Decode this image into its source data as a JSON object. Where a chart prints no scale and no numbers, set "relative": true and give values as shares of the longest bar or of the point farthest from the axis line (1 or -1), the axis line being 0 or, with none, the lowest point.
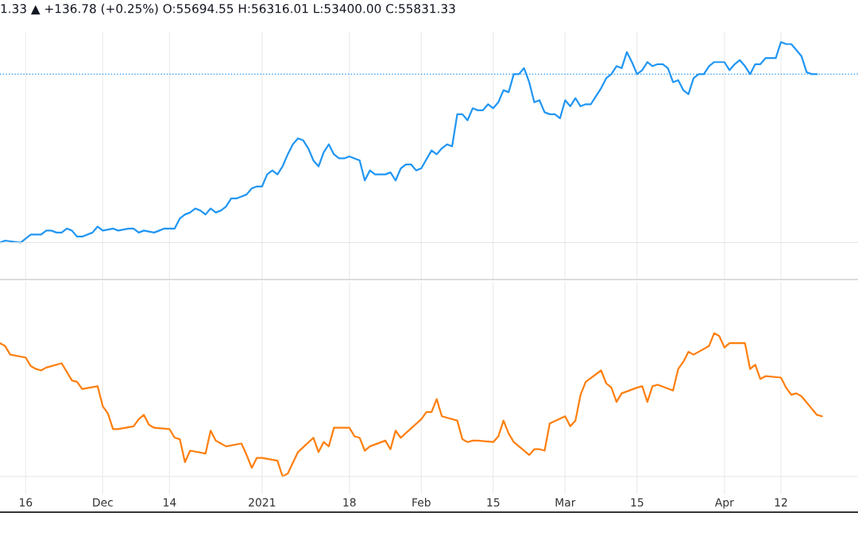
{
  "chart_data": [
    {
      "type": "line",
      "title": "1.33 ▲ +136.78 (+0.25%) O:55694.55 H:56316.01 L:53400.00 C:55831.33",
      "relative": true,
      "grid": "x",
      "tick_labels": false,
      "legend": false,
      "marker": "none",
      "line_style": "solid",
      "xlim": [
        "2020-11-11",
        "2021-04-27"
      ],
      "xticks": [
        {
          "value": "2020-11-16",
          "label": null
        },
        {
          "value": "2020-12-01",
          "label": null
        },
        {
          "value": "2020-12-14",
          "label": null
        },
        {
          "value": "2021-01-01",
          "label": null
        },
        {
          "value": "2021-01-18",
          "label": null
        },
        {
          "value": "2021-02-01",
          "label": null
        },
        {
          "value": "2021-02-15",
          "label": null
        },
        {
          "value": "2021-03-01",
          "label": null
        },
        {
          "value": "2021-03-15",
          "label": null
        },
        {
          "value": "2021-04-01",
          "label": null
        },
        {
          "value": "2021-04-12",
          "label": null
        }
      ],
      "ref_lines": [
        {
          "axis": "y",
          "value": 0.84,
          "label": null,
          "color": "#2196f3",
          "line_style": "dotted"
        }
      ],
      "x": [
        "2020-11-11",
        "2020-11-12",
        "2020-11-15",
        "2020-11-17",
        "2020-11-19",
        "2020-11-20",
        "2020-11-21",
        "2020-11-22",
        "2020-11-23",
        "2020-11-24",
        "2020-11-25",
        "2020-11-26",
        "2020-11-27",
        "2020-11-29",
        "2020-11-30",
        "2020-12-01",
        "2020-12-03",
        "2020-12-04",
        "2020-12-06",
        "2020-12-07",
        "2020-12-08",
        "2020-12-09",
        "2020-12-11",
        "2020-12-12",
        "2020-12-13",
        "2020-12-15",
        "2020-12-16",
        "2020-12-17",
        "2020-12-18",
        "2020-12-19",
        "2020-12-20",
        "2020-12-21",
        "2020-12-22",
        "2020-12-23",
        "2020-12-24",
        "2020-12-25",
        "2020-12-26",
        "2020-12-27",
        "2020-12-28",
        "2020-12-29",
        "2020-12-30",
        "2020-12-31",
        "2021-01-01",
        "2021-01-02",
        "2021-01-03",
        "2021-01-04",
        "2021-01-05",
        "2021-01-06",
        "2021-01-07",
        "2021-01-08",
        "2021-01-09",
        "2021-01-10",
        "2021-01-11",
        "2021-01-12",
        "2021-01-13",
        "2021-01-14",
        "2021-01-15",
        "2021-01-16",
        "2021-01-17",
        "2021-01-18",
        "2021-01-19",
        "2021-01-20",
        "2021-01-21",
        "2021-01-22",
        "2021-01-23",
        "2021-01-25",
        "2021-01-26",
        "2021-01-27",
        "2021-01-28",
        "2021-01-29",
        "2021-01-30",
        "2021-01-31",
        "2021-02-01",
        "2021-02-03",
        "2021-02-04",
        "2021-02-05",
        "2021-02-06",
        "2021-02-07",
        "2021-02-08",
        "2021-02-09",
        "2021-02-10",
        "2021-02-11",
        "2021-02-12",
        "2021-02-13",
        "2021-02-14",
        "2021-02-15",
        "2021-02-16",
        "2021-02-17",
        "2021-02-18",
        "2021-02-19",
        "2021-02-20",
        "2021-02-21",
        "2021-02-22",
        "2021-02-23",
        "2021-02-24",
        "2021-02-25",
        "2021-02-26",
        "2021-02-27",
        "2021-02-28",
        "2021-03-01",
        "2021-03-02",
        "2021-03-03",
        "2021-03-04",
        "2021-03-05",
        "2021-03-06",
        "2021-03-07",
        "2021-03-08",
        "2021-03-09",
        "2021-03-10",
        "2021-03-11",
        "2021-03-12",
        "2021-03-13",
        "2021-03-14",
        "2021-03-15",
        "2021-03-16",
        "2021-03-17",
        "2021-03-18",
        "2021-03-19",
        "2021-03-20",
        "2021-03-21",
        "2021-03-22",
        "2021-03-23",
        "2021-03-24",
        "2021-03-25",
        "2021-03-26",
        "2021-03-27",
        "2021-03-28",
        "2021-03-29",
        "2021-03-30",
        "2021-03-31",
        "2021-04-01",
        "2021-04-02",
        "2021-04-03",
        "2021-04-04",
        "2021-04-05",
        "2021-04-06",
        "2021-04-07",
        "2021-04-08",
        "2021-04-09",
        "2021-04-10",
        "2021-04-11",
        "2021-04-12",
        "2021-04-13",
        "2021-04-14",
        "2021-04-15",
        "2021-04-16",
        "2021-04-17",
        "2021-04-18",
        "2021-04-19"
      ],
      "series": [
        {
          "color": "#2196f3",
          "values": [
            0.0,
            0.01,
            0.0,
            0.04,
            0.04,
            0.06,
            0.06,
            0.05,
            0.05,
            0.07,
            0.06,
            0.03,
            0.03,
            0.05,
            0.08,
            0.06,
            0.07,
            0.06,
            0.07,
            0.07,
            0.05,
            0.06,
            0.05,
            0.06,
            0.07,
            0.07,
            0.12,
            0.14,
            0.15,
            0.17,
            0.16,
            0.14,
            0.17,
            0.15,
            0.16,
            0.18,
            0.22,
            0.22,
            0.23,
            0.24,
            0.27,
            0.28,
            0.28,
            0.34,
            0.36,
            0.34,
            0.38,
            0.44,
            0.49,
            0.52,
            0.51,
            0.47,
            0.41,
            0.38,
            0.45,
            0.49,
            0.44,
            0.42,
            0.42,
            0.43,
            0.42,
            0.41,
            0.31,
            0.36,
            0.34,
            0.34,
            0.35,
            0.31,
            0.37,
            0.39,
            0.39,
            0.36,
            0.37,
            0.46,
            0.44,
            0.47,
            0.49,
            0.48,
            0.64,
            0.64,
            0.61,
            0.67,
            0.66,
            0.66,
            0.69,
            0.67,
            0.7,
            0.76,
            0.75,
            0.84,
            0.84,
            0.87,
            0.8,
            0.7,
            0.71,
            0.65,
            0.64,
            0.64,
            0.62,
            0.71,
            0.68,
            0.72,
            0.68,
            0.69,
            0.69,
            0.73,
            0.77,
            0.82,
            0.84,
            0.88,
            0.87,
            0.95,
            0.9,
            0.84,
            0.86,
            0.9,
            0.88,
            0.89,
            0.89,
            0.87,
            0.8,
            0.81,
            0.76,
            0.74,
            0.82,
            0.84,
            0.84,
            0.88,
            0.9,
            0.9,
            0.9,
            0.86,
            0.89,
            0.91,
            0.88,
            0.84,
            0.89,
            0.89,
            0.92,
            0.92,
            0.92,
            1.0,
            0.99,
            0.99,
            0.96,
            0.93,
            0.85,
            0.84,
            0.84
          ]
        }
      ]
    },
    {
      "type": "line",
      "relative": true,
      "grid": "x",
      "tick_labels": "x",
      "legend": false,
      "marker": "none",
      "line_style": "solid",
      "xlim": [
        "2020-11-11",
        "2021-04-27"
      ],
      "xticks": [
        {
          "value": "2020-11-16",
          "label": "16"
        },
        {
          "value": "2020-12-01",
          "label": "Dec"
        },
        {
          "value": "2020-12-14",
          "label": "14"
        },
        {
          "value": "2021-01-01",
          "label": "2021"
        },
        {
          "value": "2021-01-18",
          "label": "18"
        },
        {
          "value": "2021-02-01",
          "label": "Feb"
        },
        {
          "value": "2021-02-15",
          "label": "15"
        },
        {
          "value": "2021-03-01",
          "label": "Mar"
        },
        {
          "value": "2021-03-15",
          "label": "15"
        },
        {
          "value": "2021-04-01",
          "label": "Apr"
        },
        {
          "value": "2021-04-12",
          "label": "12"
        }
      ],
      "x": [
        "2020-11-11",
        "2020-11-12",
        "2020-11-13",
        "2020-11-16",
        "2020-11-17",
        "2020-11-18",
        "2020-11-19",
        "2020-11-20",
        "2020-11-23",
        "2020-11-25",
        "2020-11-26",
        "2020-11-27",
        "2020-11-30",
        "2020-12-01",
        "2020-12-02",
        "2020-12-03",
        "2020-12-04",
        "2020-12-07",
        "2020-12-08",
        "2020-12-09",
        "2020-12-10",
        "2020-12-11",
        "2020-12-14",
        "2020-12-15",
        "2020-12-16",
        "2020-12-17",
        "2020-12-18",
        "2020-12-21",
        "2020-12-22",
        "2020-12-23",
        "2020-12-24",
        "2020-12-25",
        "2020-12-28",
        "2020-12-29",
        "2020-12-30",
        "2020-12-31",
        "2021-01-01",
        "2021-01-04",
        "2021-01-05",
        "2021-01-06",
        "2021-01-08",
        "2021-01-11",
        "2021-01-12",
        "2021-01-13",
        "2021-01-14",
        "2021-01-15",
        "2021-01-18",
        "2021-01-19",
        "2021-01-20",
        "2021-01-21",
        "2021-01-22",
        "2021-01-25",
        "2021-01-26",
        "2021-01-27",
        "2021-01-28",
        "2021-02-01",
        "2021-02-02",
        "2021-02-03",
        "2021-02-04",
        "2021-02-05",
        "2021-02-08",
        "2021-02-09",
        "2021-02-10",
        "2021-02-11",
        "2021-02-12",
        "2021-02-15",
        "2021-02-16",
        "2021-02-17",
        "2021-02-18",
        "2021-02-19",
        "2021-02-22",
        "2021-02-23",
        "2021-02-24",
        "2021-02-25",
        "2021-02-26",
        "2021-03-01",
        "2021-03-02",
        "2021-03-03",
        "2021-03-04",
        "2021-03-05",
        "2021-03-08",
        "2021-03-09",
        "2021-03-10",
        "2021-03-11",
        "2021-03-12",
        "2021-03-15",
        "2021-03-16",
        "2021-03-17",
        "2021-03-18",
        "2021-03-19",
        "2021-03-22",
        "2021-03-23",
        "2021-03-24",
        "2021-03-25",
        "2021-03-26",
        "2021-03-29",
        "2021-03-30",
        "2021-03-31",
        "2021-04-01",
        "2021-04-02",
        "2021-04-05",
        "2021-04-06",
        "2021-04-07",
        "2021-04-08",
        "2021-04-09",
        "2021-04-12",
        "2021-04-13",
        "2021-04-14",
        "2021-04-15",
        "2021-04-16",
        "2021-04-19",
        "2021-04-20"
      ],
      "series": [
        {
          "color": "#ff7f0e",
          "values": [
            0.93,
            0.91,
            0.85,
            0.83,
            0.77,
            0.75,
            0.74,
            0.76,
            0.79,
            0.67,
            0.66,
            0.61,
            0.63,
            0.49,
            0.44,
            0.33,
            0.33,
            0.35,
            0.4,
            0.43,
            0.36,
            0.34,
            0.33,
            0.27,
            0.26,
            0.1,
            0.18,
            0.16,
            0.32,
            0.25,
            0.23,
            0.21,
            0.23,
            0.15,
            0.06,
            0.13,
            0.13,
            0.11,
            0.0,
            0.02,
            0.17,
            0.27,
            0.17,
            0.24,
            0.21,
            0.34,
            0.34,
            0.28,
            0.27,
            0.18,
            0.21,
            0.25,
            0.19,
            0.32,
            0.27,
            0.4,
            0.45,
            0.45,
            0.54,
            0.42,
            0.39,
            0.26,
            0.24,
            0.25,
            0.25,
            0.24,
            0.28,
            0.39,
            0.3,
            0.24,
            0.15,
            0.19,
            0.19,
            0.18,
            0.37,
            0.42,
            0.35,
            0.39,
            0.57,
            0.66,
            0.74,
            0.65,
            0.62,
            0.52,
            0.58,
            0.62,
            0.63,
            0.52,
            0.63,
            0.64,
            0.6,
            0.75,
            0.8,
            0.87,
            0.85,
            0.91,
            1.0,
            0.98,
            0.9,
            0.93,
            0.93,
            0.75,
            0.78,
            0.68,
            0.7,
            0.69,
            0.62,
            0.57,
            0.58,
            0.56,
            0.43,
            0.42
          ]
        }
      ]
    }
  ]
}
